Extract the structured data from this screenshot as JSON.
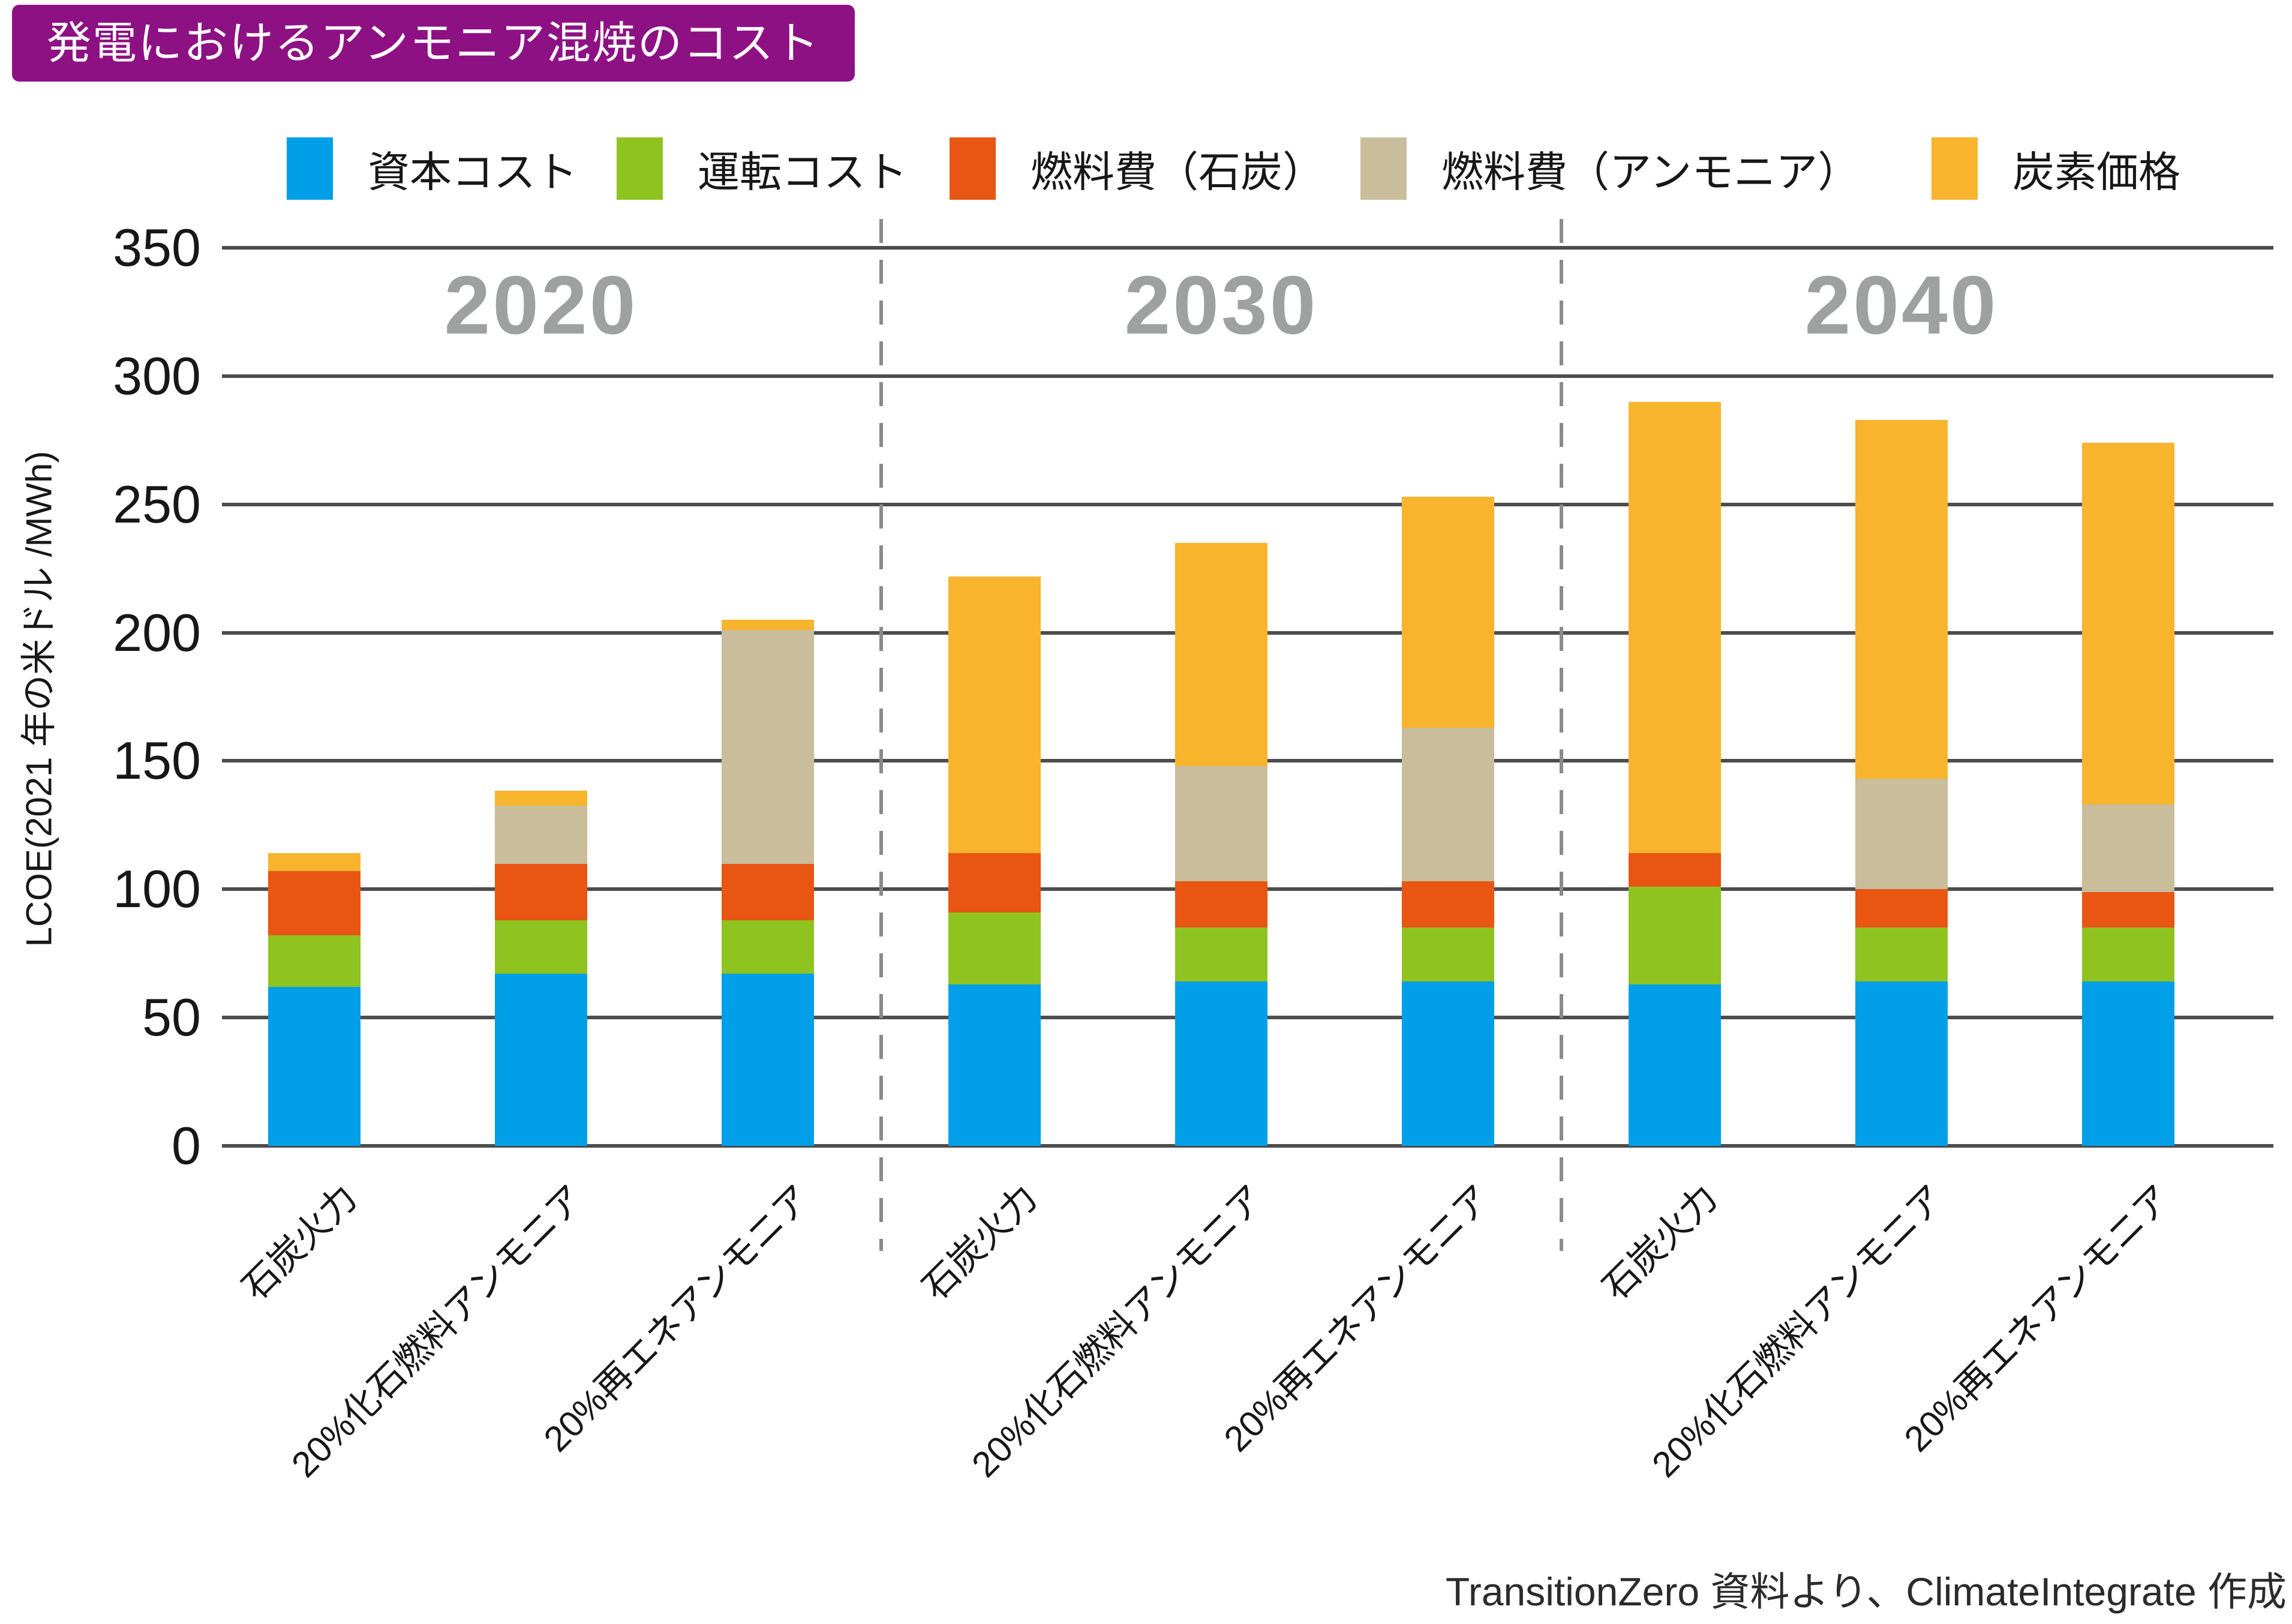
{
  "title": "発電におけるアンモニア混焼のコスト",
  "source_note": "TransitionZero 資料より、ClimateIntegrate 作成",
  "colors": {
    "title_bg": "#8E1184",
    "title_text": "#FFFFFF",
    "capital": "#009FE8",
    "oandm": "#8FC31F",
    "fuel_coal": "#E95513",
    "fuel_ammonia": "#C9BD9C",
    "carbon_price": "#F7B42C",
    "gridline": "#4D4D4D",
    "separator_dash": "#8A8A8A",
    "year_label": "#9FA0A0"
  },
  "chart_data": {
    "type": "bar",
    "stacked": true,
    "title": "発電におけるアンモニア混焼のコスト",
    "ylabel": "LCOE(2021 年の米ドル /MWh)",
    "xlabel": "",
    "ylim": [
      0,
      350
    ],
    "y_ticks": [
      0,
      50,
      100,
      150,
      200,
      250,
      300,
      350
    ],
    "grid": "horizontal",
    "legend_position": "top",
    "groups": [
      "2020",
      "2030",
      "2040"
    ],
    "categories_per_group": [
      "石炭火力",
      "20%化石燃料アンモニア",
      "20%再エネアンモニア"
    ],
    "categories": [
      "石炭火力",
      "20%化石燃料アンモニア",
      "20%再エネアンモニア",
      "石炭火力",
      "20%化石燃料アンモニア",
      "20%再エネアンモニア",
      "石炭火力",
      "20%化石燃料アンモニア",
      "20%再エネアンモニア"
    ],
    "series": [
      {
        "name": "資本コスト",
        "color": "#009FE8",
        "values": [
          62,
          67,
          67,
          63,
          64,
          64,
          63,
          64,
          64
        ]
      },
      {
        "name": "運転コスト",
        "color": "#8FC31F",
        "values": [
          20,
          21,
          21,
          28,
          21,
          21,
          38,
          21,
          21
        ]
      },
      {
        "name": "燃料費（石炭）",
        "color": "#E95513",
        "values": [
          25,
          22,
          22,
          23,
          18,
          18,
          13,
          15,
          14
        ]
      },
      {
        "name": "燃料費（アンモニア）",
        "color": "#C9BD9C",
        "values": [
          0,
          22.5,
          91,
          0,
          45,
          60,
          0,
          43,
          34
        ]
      },
      {
        "name": "炭素価格",
        "color": "#F7B42C",
        "values": [
          7,
          6,
          4,
          108,
          87,
          90,
          176,
          140,
          141
        ]
      }
    ],
    "totals": [
      114,
      138.5,
      205,
      222,
      235,
      253,
      290,
      283,
      274
    ]
  }
}
